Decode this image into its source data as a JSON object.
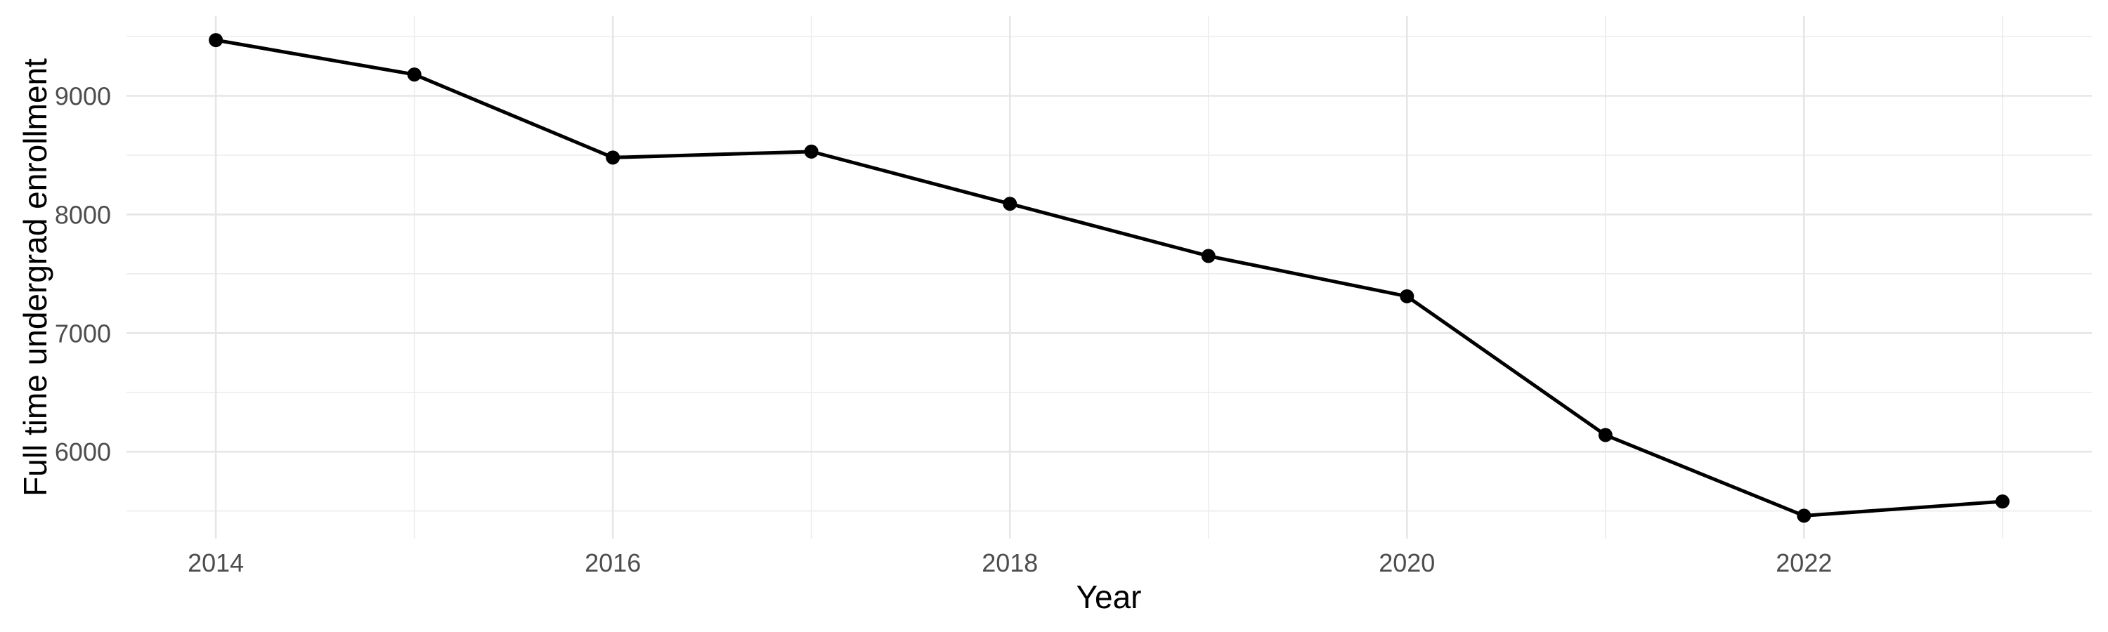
{
  "chart_data": {
    "type": "line",
    "title": "",
    "xlabel": "Year",
    "ylabel": "Full time undergrad enrollment",
    "series": [
      {
        "name": "Full time undergrad enrollment",
        "x": [
          2014,
          2015,
          2016,
          2017,
          2018,
          2019,
          2020,
          2021,
          2022,
          2023
        ],
        "values": [
          9470,
          9180,
          8480,
          8530,
          8090,
          7650,
          7310,
          6140,
          5460,
          5580
        ]
      }
    ],
    "x_major_ticks": [
      2014,
      2016,
      2018,
      2020,
      2022
    ],
    "x_minor_ticks": [
      2015,
      2017,
      2019,
      2021,
      2023
    ],
    "y_major_ticks": [
      6000,
      7000,
      8000,
      9000
    ],
    "y_minor_ticks": [
      5500,
      6500,
      7500,
      8500,
      9500
    ],
    "xlim": [
      2013.55,
      2023.45
    ],
    "ylim": [
      5267,
      9672
    ],
    "grid": "major+minor",
    "legend": "none",
    "colors": {
      "line": "#000000",
      "point": "#000000",
      "background": "#ffffff",
      "major_grid": "#e6e6e6",
      "minor_grid": "#ededed",
      "tick_label": "#4d4d4d",
      "axis_title": "#000000"
    }
  }
}
